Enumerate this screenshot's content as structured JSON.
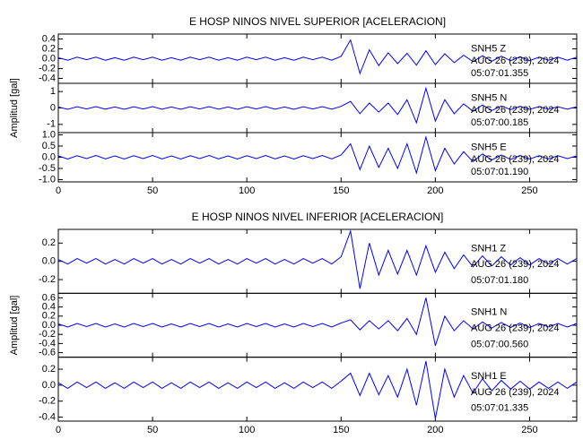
{
  "chart_data": [
    {
      "type": "line",
      "title": "E HOSP NINOS NIVEL SUPERIOR [ACELERACION]",
      "y_label": "Amplitud [gal]",
      "xlim": [
        0,
        275
      ],
      "xticks": [
        0,
        50,
        100,
        150,
        200,
        250
      ],
      "x": [
        0,
        5,
        10,
        15,
        20,
        25,
        30,
        35,
        40,
        45,
        50,
        55,
        60,
        65,
        70,
        75,
        80,
        85,
        90,
        95,
        100,
        105,
        110,
        115,
        120,
        125,
        130,
        135,
        140,
        145,
        150,
        155,
        160,
        165,
        170,
        175,
        180,
        185,
        190,
        195,
        200,
        205,
        210,
        215,
        220,
        225,
        230,
        235,
        240,
        245,
        250,
        255,
        260,
        265,
        270,
        275
      ],
      "panels": [
        {
          "name": "SNH5   Z",
          "color": "#0000ff",
          "annotation": [
            "AUG 26 (239), 2024",
            "05:07:01.355"
          ],
          "ylim": [
            -0.5,
            0.5
          ],
          "yticks": [
            0.4,
            0.2,
            {
              "value": 0,
              "label": "0.0"
            },
            -0.2,
            -0.4
          ],
          "values": [
            0.02,
            -0.03,
            0.03,
            -0.02,
            0.03,
            -0.03,
            0.02,
            -0.03,
            0.03,
            -0.02,
            0.03,
            -0.03,
            0.02,
            -0.03,
            0.03,
            -0.02,
            0.03,
            -0.03,
            0.02,
            -0.03,
            0.03,
            -0.02,
            0.03,
            -0.03,
            0.02,
            -0.03,
            0.03,
            -0.02,
            0.03,
            -0.03,
            0.05,
            0.38,
            -0.3,
            0.18,
            -0.14,
            0.12,
            -0.1,
            0.11,
            -0.13,
            0.16,
            -0.12,
            0.1,
            -0.08,
            0.07,
            -0.06,
            0.06,
            -0.05,
            0.05,
            -0.04,
            0.04,
            -0.04,
            0.03,
            -0.03,
            0.03,
            -0.03,
            0.03
          ]
        },
        {
          "name": "SNH5   N",
          "color": "#0000ff",
          "annotation": [
            "AUG 26 (239), 2024",
            "05:07:00.185"
          ],
          "ylim": [
            -1.5,
            1.5
          ],
          "yticks": [
            1,
            0,
            -1
          ],
          "values": [
            0.06,
            -0.08,
            0.07,
            -0.06,
            0.08,
            -0.07,
            0.06,
            -0.08,
            0.07,
            -0.06,
            0.08,
            -0.07,
            0.06,
            -0.08,
            0.07,
            -0.06,
            0.08,
            -0.07,
            0.06,
            -0.08,
            0.07,
            -0.06,
            0.08,
            -0.07,
            0.06,
            -0.08,
            0.07,
            -0.06,
            0.08,
            -0.07,
            0.1,
            0.4,
            -0.35,
            0.3,
            -0.25,
            0.3,
            -0.4,
            0.5,
            -0.9,
            1.2,
            -0.8,
            0.5,
            -0.35,
            0.25,
            -0.2,
            0.18,
            -0.15,
            0.12,
            -0.1,
            0.1,
            -0.08,
            0.08,
            -0.07,
            0.07,
            -0.07,
            0.07
          ]
        },
        {
          "name": "SNH5   E",
          "color": "#0000ff",
          "annotation": [
            "AUG 26 (239), 2024",
            "05:07:01.190"
          ],
          "ylim": [
            -1.1,
            1.1
          ],
          "yticks": [
            {
              "value": 1,
              "label": "1.0"
            },
            0.5,
            {
              "value": 0,
              "label": "0.0"
            },
            -0.5,
            {
              "value": -1,
              "label": "-1.0"
            }
          ],
          "values": [
            0.06,
            -0.08,
            0.07,
            -0.06,
            0.08,
            -0.07,
            0.06,
            -0.08,
            0.07,
            -0.06,
            0.08,
            -0.07,
            0.06,
            -0.08,
            0.07,
            -0.06,
            0.08,
            -0.07,
            0.06,
            -0.08,
            0.07,
            -0.06,
            0.08,
            -0.07,
            0.06,
            -0.08,
            0.07,
            -0.06,
            0.08,
            -0.07,
            0.1,
            0.6,
            -0.55,
            0.5,
            -0.45,
            0.4,
            -0.5,
            0.6,
            -0.7,
            0.9,
            -0.6,
            0.4,
            -0.3,
            0.25,
            -0.2,
            0.15,
            -0.12,
            0.1,
            -0.1,
            0.08,
            -0.08,
            0.07,
            -0.07,
            0.07,
            -0.06,
            0.06
          ]
        }
      ]
    },
    {
      "type": "line",
      "title": "E HOSP NINOS NIVEL INFERIOR [ACELERACION]",
      "y_label": "Amplitud [gal]",
      "xlim": [
        0,
        275
      ],
      "xticks": [
        0,
        50,
        100,
        150,
        200,
        250
      ],
      "x": [
        0,
        5,
        10,
        15,
        20,
        25,
        30,
        35,
        40,
        45,
        50,
        55,
        60,
        65,
        70,
        75,
        80,
        85,
        90,
        95,
        100,
        105,
        110,
        115,
        120,
        125,
        130,
        135,
        140,
        145,
        150,
        155,
        160,
        165,
        170,
        175,
        180,
        185,
        190,
        195,
        200,
        205,
        210,
        215,
        220,
        225,
        230,
        235,
        240,
        245,
        250,
        255,
        260,
        265,
        270,
        275
      ],
      "panels": [
        {
          "name": "SNH1   Z",
          "color": "#0000ff",
          "annotation": [
            "AUG 26 (239), 2024",
            "05:07:01.180"
          ],
          "ylim": [
            -0.35,
            0.35
          ],
          "yticks": [
            0.2,
            {
              "value": 0,
              "label": "0.0"
            },
            -0.2
          ],
          "values": [
            0.02,
            -0.03,
            0.03,
            -0.02,
            0.03,
            -0.03,
            0.02,
            -0.03,
            0.03,
            -0.02,
            0.03,
            -0.03,
            0.02,
            -0.03,
            0.03,
            -0.02,
            0.03,
            -0.03,
            0.02,
            -0.03,
            0.03,
            -0.02,
            0.03,
            -0.03,
            0.02,
            -0.03,
            0.03,
            -0.02,
            0.03,
            -0.03,
            0.05,
            0.33,
            -0.3,
            0.2,
            -0.15,
            0.12,
            -0.14,
            0.12,
            -0.15,
            0.17,
            -0.12,
            0.1,
            -0.08,
            0.07,
            -0.06,
            0.06,
            -0.05,
            0.05,
            -0.04,
            0.04,
            -0.04,
            0.03,
            -0.03,
            0.03,
            -0.03,
            0.03
          ]
        },
        {
          "name": "SNH1   N",
          "color": "#0000ff",
          "annotation": [
            "AUG 26 (239), 2024",
            "05:07:00.560"
          ],
          "ylim": [
            -0.7,
            0.7
          ],
          "yticks": [
            0.6,
            0.4,
            0.2,
            {
              "value": 0,
              "label": "0.0"
            },
            -0.2,
            -0.4,
            -0.6
          ],
          "values": [
            0.03,
            -0.04,
            0.04,
            -0.03,
            0.04,
            -0.04,
            0.03,
            -0.04,
            0.04,
            -0.03,
            0.04,
            -0.04,
            0.03,
            -0.04,
            0.04,
            -0.03,
            0.04,
            -0.04,
            0.03,
            -0.04,
            0.04,
            -0.03,
            0.04,
            -0.04,
            0.03,
            -0.04,
            0.04,
            -0.03,
            0.04,
            -0.04,
            0.05,
            0.12,
            -0.1,
            0.1,
            -0.08,
            0.1,
            -0.12,
            0.15,
            -0.2,
            0.6,
            -0.45,
            0.2,
            -0.12,
            0.1,
            -0.08,
            0.07,
            -0.06,
            0.06,
            -0.05,
            0.05,
            -0.05,
            0.04,
            -0.04,
            0.04,
            -0.04,
            0.04
          ]
        },
        {
          "name": "SNH1   E",
          "color": "#0000ff",
          "annotation": [
            "AUG 26 (239), 2024",
            "05:07:01.335"
          ],
          "ylim": [
            -0.45,
            0.35
          ],
          "yticks": [
            0.2,
            {
              "value": 0,
              "label": "0.0"
            },
            -0.2,
            -0.4
          ],
          "values": [
            0.03,
            -0.04,
            0.04,
            -0.03,
            0.04,
            -0.04,
            0.03,
            -0.04,
            0.04,
            -0.03,
            0.04,
            -0.04,
            0.03,
            -0.04,
            0.04,
            -0.03,
            0.04,
            -0.04,
            0.03,
            -0.04,
            0.04,
            -0.03,
            0.04,
            -0.04,
            0.03,
            -0.04,
            0.04,
            -0.03,
            0.04,
            -0.04,
            0.05,
            0.15,
            -0.13,
            0.15,
            -0.12,
            0.12,
            -0.15,
            0.2,
            -0.25,
            0.3,
            -0.42,
            0.2,
            -0.15,
            0.12,
            -0.1,
            0.08,
            -0.07,
            0.06,
            -0.05,
            0.05,
            -0.05,
            0.04,
            -0.04,
            0.04,
            -0.04,
            0.04
          ]
        }
      ]
    }
  ]
}
